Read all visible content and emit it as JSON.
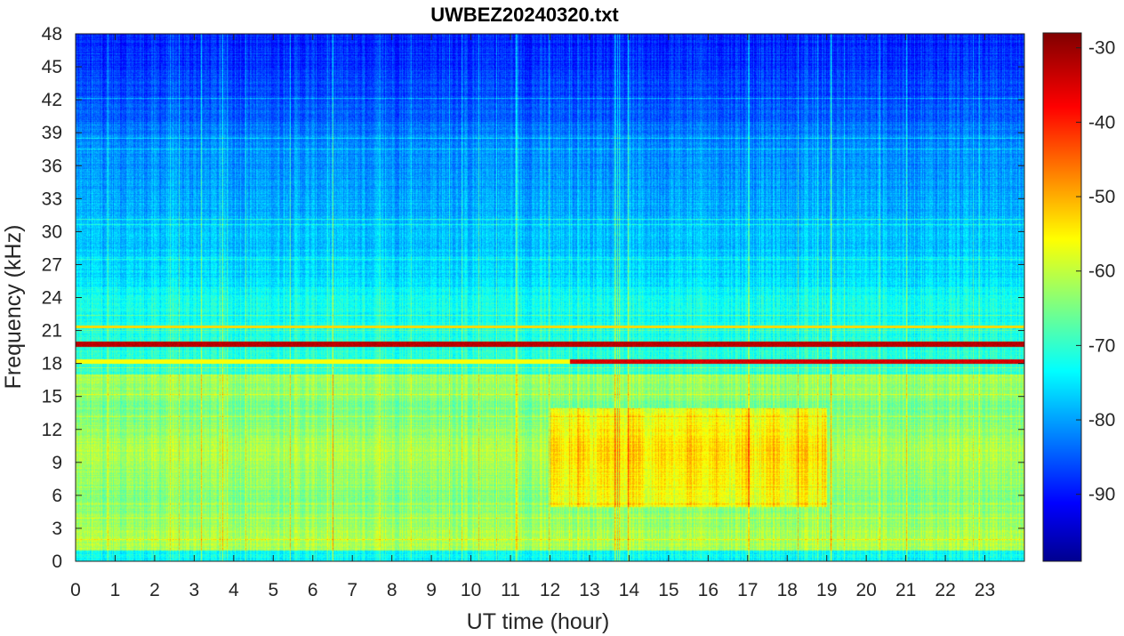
{
  "chart_data": {
    "type": "heatmap",
    "title": "UWBEZ20240320.txt",
    "xlabel": "UT time (hour)",
    "ylabel": "Frequency (kHz)",
    "xlim": [
      0,
      24
    ],
    "ylim": [
      0,
      48
    ],
    "x_ticks": [
      "0",
      "1",
      "2",
      "3",
      "4",
      "5",
      "6",
      "7",
      "8",
      "9",
      "10",
      "11",
      "12",
      "13",
      "14",
      "15",
      "16",
      "17",
      "18",
      "19",
      "20",
      "21",
      "22",
      "23"
    ],
    "y_ticks": [
      "0",
      "3",
      "6",
      "9",
      "12",
      "15",
      "18",
      "21",
      "24",
      "27",
      "30",
      "33",
      "36",
      "39",
      "42",
      "45",
      "48"
    ],
    "colorbar": {
      "colormap": "jet",
      "range": [
        -99,
        -28
      ],
      "ticks": [
        "-90",
        "-80",
        "-70",
        "-60",
        "-50",
        "-40",
        "-30"
      ]
    },
    "features": {
      "strong_lines_khz": [
        19.8,
        18.2
      ],
      "line_21_4_khz": 21.4,
      "enhanced_band_khz": [
        5,
        14
      ],
      "enhanced_band_hours": [
        12,
        19
      ]
    }
  }
}
